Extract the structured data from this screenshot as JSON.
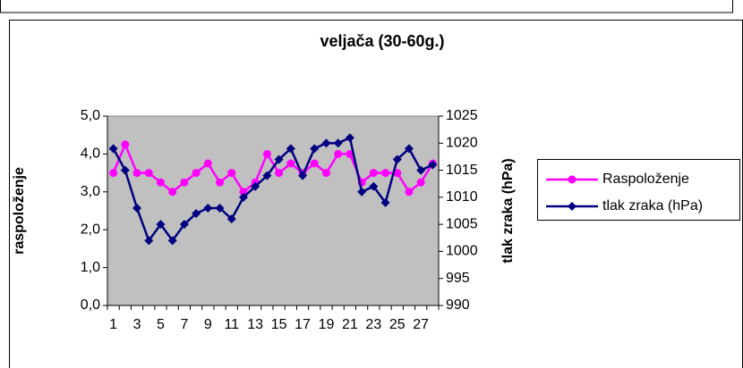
{
  "chart_data": {
    "type": "line",
    "title": "veljača (30-60g.)",
    "y_label": "raspoloženje",
    "y2_label": "tlak zraka (hPa)",
    "categories": [
      "1",
      null,
      "3",
      null,
      "5",
      null,
      "7",
      null,
      "9",
      null,
      "11",
      null,
      "13",
      null,
      "15",
      null,
      "17",
      null,
      "19",
      null,
      "21",
      null,
      "23",
      null,
      "25",
      null,
      "27",
      null
    ],
    "series": [
      {
        "name": "Raspoloženje",
        "color": "#ff00ff",
        "marker": "circle",
        "values": [
          3.5,
          4.25,
          3.5,
          3.5,
          3.25,
          3.0,
          3.25,
          3.5,
          3.75,
          3.25,
          3.5,
          3.0,
          3.25,
          4.0,
          3.5,
          3.75,
          3.5,
          3.75,
          3.5,
          4.0,
          4.0,
          3.25,
          3.5,
          3.5,
          3.5,
          3.0,
          3.25,
          3.75
        ]
      },
      {
        "name": "tlak zraka (hPa)",
        "color": "#000080",
        "marker": "diamond",
        "axis": "y2",
        "values": [
          1019,
          1015,
          1008,
          1002,
          1005,
          1002,
          1005,
          1007,
          1008,
          1008,
          1006,
          1010,
          1012,
          1014,
          1017,
          1019,
          1014,
          1019,
          1020,
          1020,
          1021,
          1011,
          1012,
          1009,
          1017,
          1019,
          1015,
          1016
        ]
      }
    ],
    "ylim": [
      0,
      5
    ],
    "yticks": [
      {
        "value": 0,
        "label": "0,0"
      },
      {
        "value": 1,
        "label": "1,0"
      },
      {
        "value": 2,
        "label": "2,0"
      },
      {
        "value": 3,
        "label": "3,0"
      },
      {
        "value": 4,
        "label": "4,0"
      },
      {
        "value": 5,
        "label": "5,0"
      }
    ],
    "y2lim": [
      990,
      1025
    ],
    "y2ticks": [
      990,
      995,
      1000,
      1005,
      1010,
      1015,
      1020,
      1025
    ],
    "plot_background": "#c0c0c0",
    "grid": false,
    "legend": "right"
  }
}
